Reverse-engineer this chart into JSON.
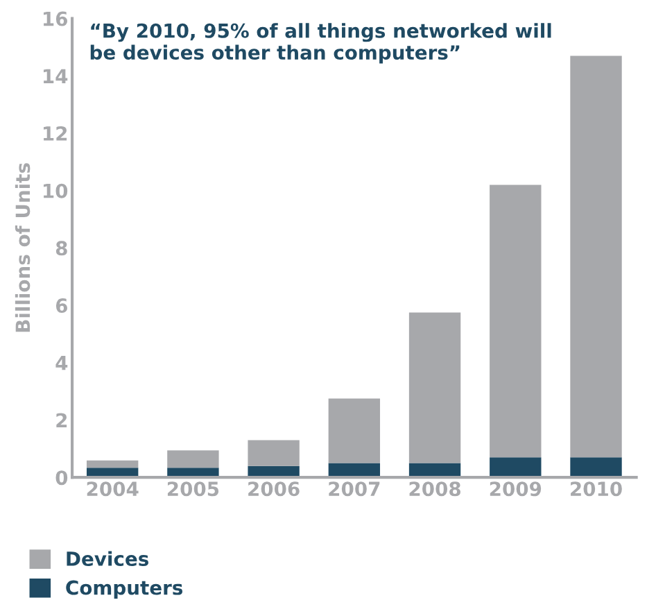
{
  "chart_data": {
    "type": "bar",
    "stacked": true,
    "title": "“By 2010, 95% of all things networked will\nbe devices other than computers”",
    "ylabel": "Billions of Units",
    "categories": [
      "2004",
      "2005",
      "2006",
      "2007",
      "2008",
      "2009",
      "2010"
    ],
    "series": [
      {
        "name": "Computers",
        "color": "#1f4a63",
        "values": [
          0.34,
          0.34,
          0.4,
          0.5,
          0.5,
          0.7,
          0.7
        ]
      },
      {
        "name": "Devices",
        "color": "#a7a8ab",
        "values": [
          0.25,
          0.6,
          0.9,
          2.25,
          5.25,
          9.5,
          14.0
        ]
      }
    ],
    "ylim": [
      0,
      16
    ],
    "yticks": [
      0,
      2,
      4,
      6,
      8,
      10,
      12,
      14,
      16
    ],
    "grid": false,
    "legend": "bottom"
  }
}
